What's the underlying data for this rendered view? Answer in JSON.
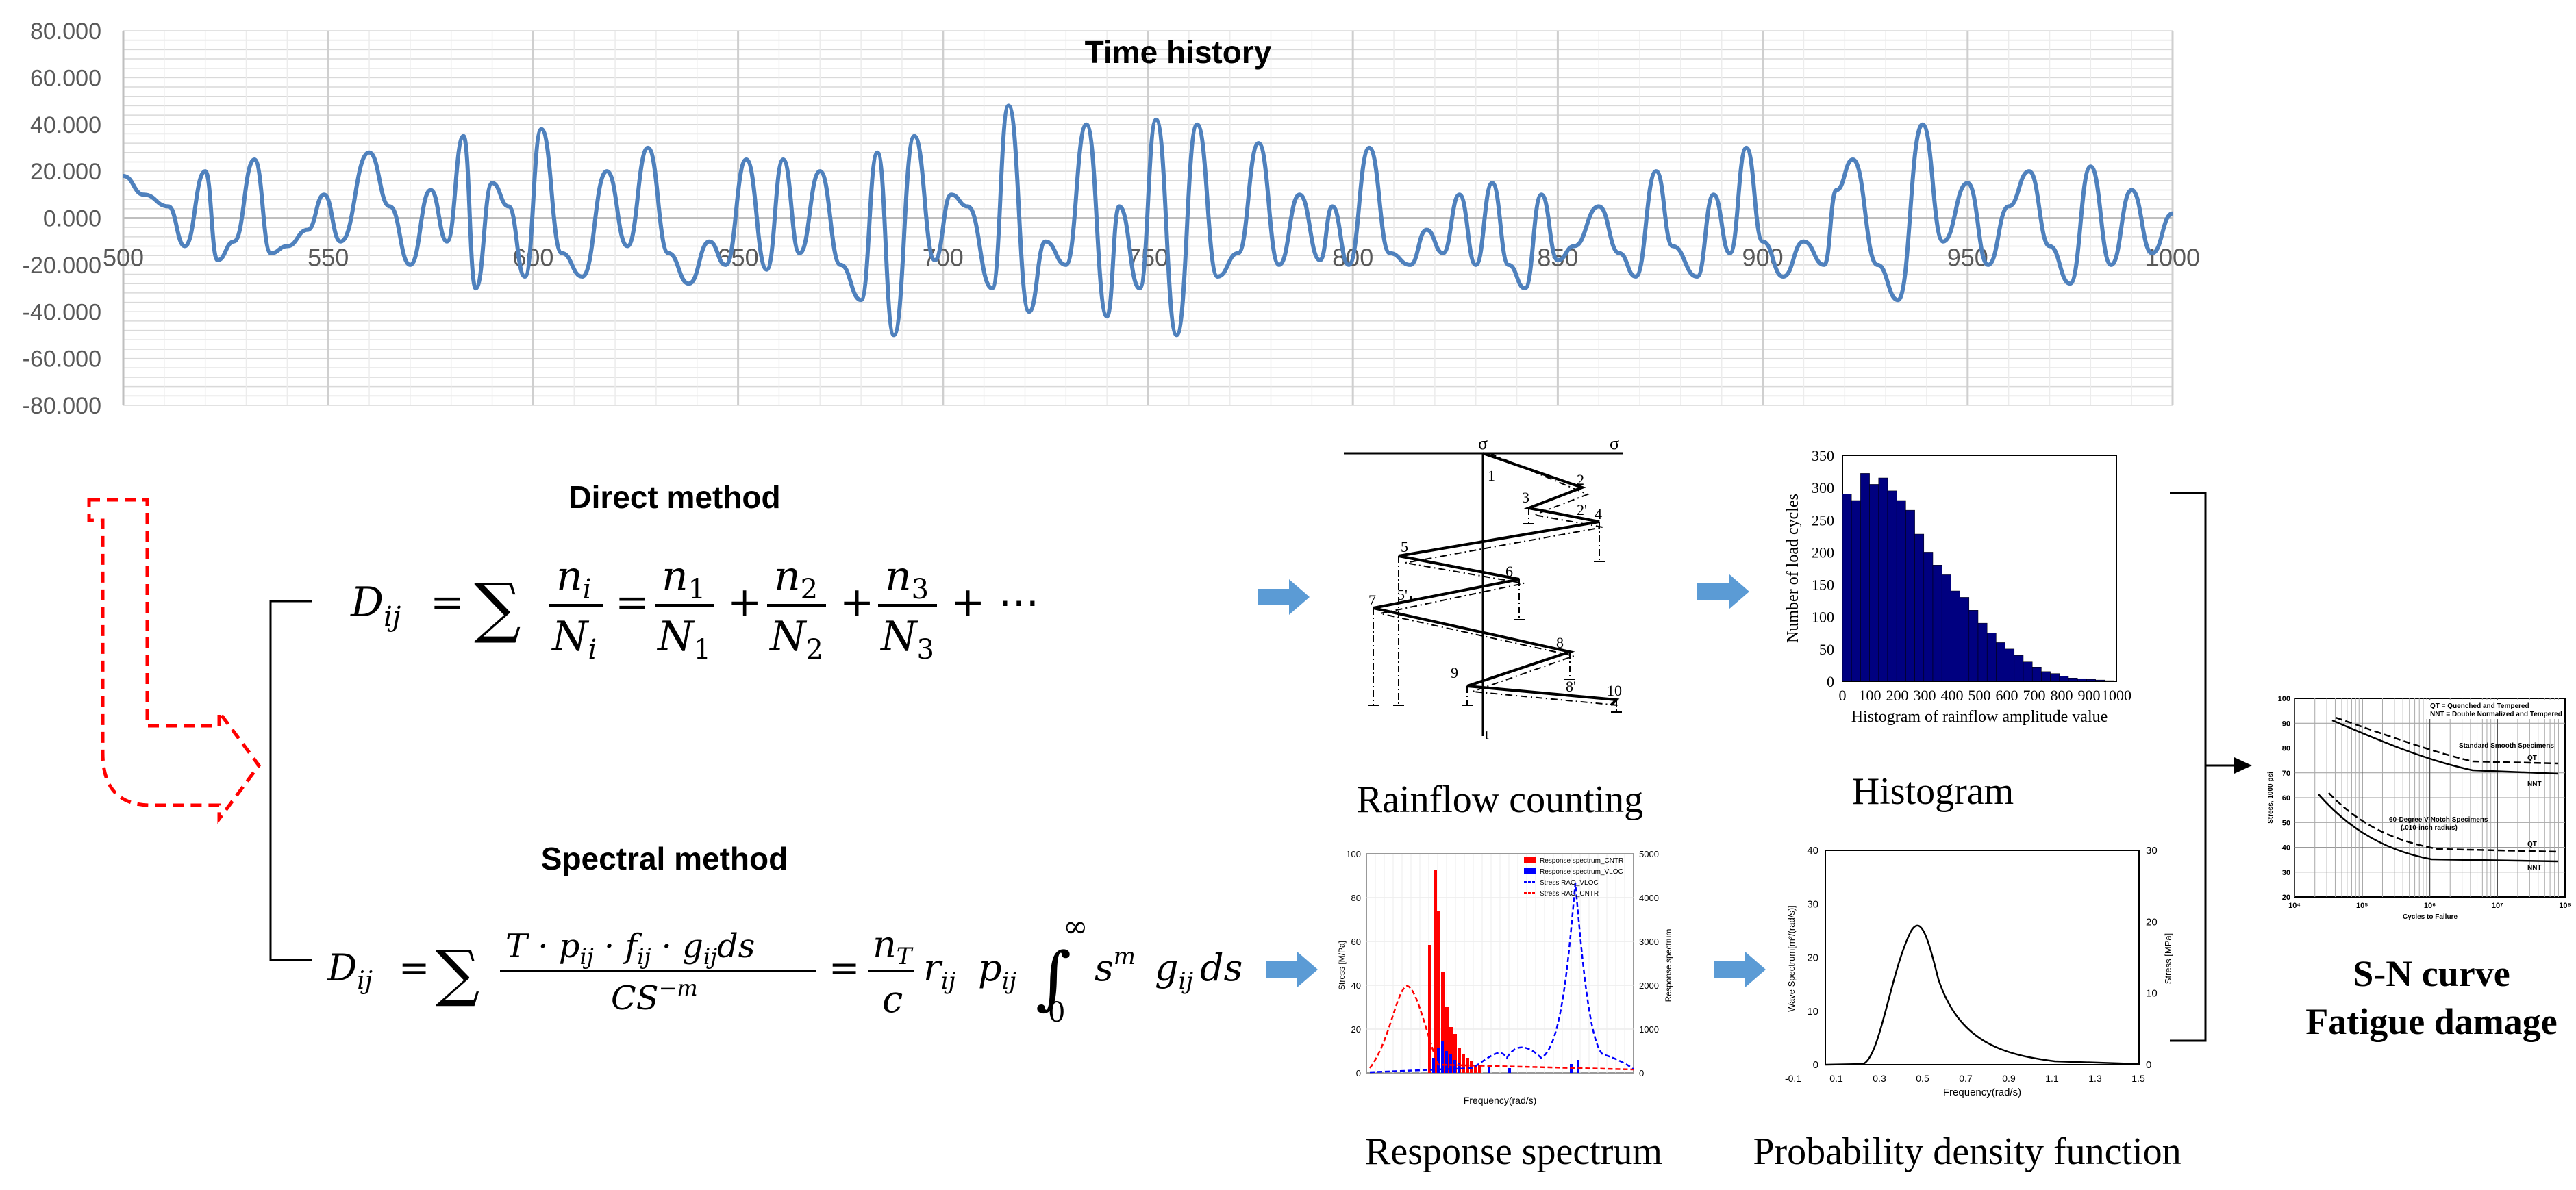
{
  "colors": {
    "series": "#4f81bd",
    "grid": "#d9d9d9",
    "axis": "#bfbfbf",
    "arrow_blue": "#5b9bd5",
    "redirect": "#ff0000",
    "histogram_bar": "#000080",
    "rs_red": "#ff0000",
    "rs_blue": "#0000ff"
  },
  "time_history": {
    "title": "Time history",
    "y_ticks": [
      "80.000",
      "60.000",
      "40.000",
      "20.000",
      "0.000",
      "-20.000",
      "-40.000",
      "-60.000",
      "-80.000"
    ],
    "x_ticks": [
      "500",
      "550",
      "600",
      "650",
      "700",
      "750",
      "800",
      "850",
      "900",
      "950",
      "1000"
    ],
    "chart_data": {
      "type": "line",
      "title": "Time history",
      "xlim": [
        500,
        1000
      ],
      "ylim": [
        -80,
        80
      ],
      "x": [
        500,
        505,
        511,
        515,
        520,
        523,
        527,
        532,
        536,
        540,
        545,
        549,
        553,
        560,
        565,
        570,
        575,
        579,
        583,
        586,
        590,
        594,
        598,
        602,
        607,
        612,
        618,
        623,
        628,
        633,
        638,
        643,
        647,
        652,
        657,
        661,
        665,
        670,
        675,
        680,
        684,
        688,
        693,
        698,
        702,
        706,
        712,
        716,
        721,
        725,
        730,
        735,
        740,
        743,
        748,
        752,
        757,
        762,
        767,
        772,
        777,
        782,
        787,
        792,
        795,
        799,
        804,
        809,
        814,
        818,
        822,
        826,
        830,
        834,
        838,
        842,
        846,
        850,
        854,
        860,
        865,
        869,
        874,
        878,
        884,
        888,
        892,
        896,
        900,
        905,
        910,
        915,
        918,
        922,
        928,
        933,
        939,
        944,
        950,
        955,
        960,
        965,
        970,
        975,
        980,
        985,
        990,
        995,
        1000
      ],
      "y": [
        18,
        10,
        5,
        -12,
        20,
        -18,
        -10,
        25,
        -15,
        -12,
        -5,
        10,
        -10,
        28,
        5,
        -20,
        12,
        -10,
        35,
        -30,
        15,
        5,
        -25,
        38,
        -15,
        -25,
        20,
        -12,
        30,
        -15,
        -28,
        -10,
        -20,
        25,
        -22,
        25,
        -15,
        20,
        -20,
        -35,
        28,
        -50,
        35,
        -18,
        10,
        5,
        -30,
        48,
        -40,
        -10,
        -20,
        40,
        -42,
        5,
        -30,
        42,
        -50,
        40,
        -25,
        -15,
        32,
        -20,
        10,
        -18,
        5,
        -20,
        30,
        -15,
        -20,
        -5,
        -15,
        10,
        -20,
        15,
        -20,
        -30,
        10,
        -18,
        -12,
        5,
        -15,
        -25,
        20,
        -12,
        -25,
        10,
        -15,
        30,
        -10,
        -25,
        -10,
        -20,
        12,
        25,
        -20,
        -35,
        40,
        -10,
        15,
        -20,
        5,
        20,
        -12,
        -28,
        22,
        -20,
        12,
        -15,
        2
      ]
    }
  },
  "direct_method": {
    "title": "Direct method",
    "formula": {
      "lhs": "D",
      "lhs_sub": "ij",
      "eq": "=",
      "sigma": "∑",
      "n_i": "n",
      "n_i_sub": "i",
      "N_i": "N",
      "N_i_sub": "i",
      "n1": "n",
      "n1_sub": "1",
      "N1": "N",
      "N1_sub": "1",
      "n2": "n",
      "n2_sub": "2",
      "N2": "N",
      "N2_sub": "2",
      "n3": "n",
      "n3_sub": "3",
      "N3": "N",
      "N3_sub": "3",
      "plus": "+",
      "ellipsis": "+ ⋯"
    }
  },
  "spectral_method": {
    "title": "Spectral method",
    "formula": {
      "lhs": "D",
      "lhs_sub": "ij",
      "numerator": "T · p",
      "numerator_sub1": "ij",
      "numerator_mid1": " · f",
      "numerator_sub2": "ij",
      "numerator_mid2": " · g",
      "numerator_sub3": "ij",
      "numerator_tail": "ds",
      "denominator": "CS",
      "denominator_sup": "−m",
      "nT": "n",
      "nT_sub": "T",
      "c": "c",
      "r": "r",
      "r_sub": "ij",
      "p": "p",
      "p_sub": "ij",
      "integral": "∫",
      "int_upper": "∞",
      "int_lower": "0",
      "s": "s",
      "s_sup": "m",
      "g": "g",
      "g_sub": "ij",
      "ds": "ds"
    }
  },
  "rainflow": {
    "caption": "Rainflow counting",
    "sigma_left": "σ",
    "sigma_right": "σ",
    "t_label": "t",
    "points": [
      "1",
      "2",
      "2'",
      "3",
      "4",
      "5",
      "5'",
      "6",
      "7",
      "8",
      "8'",
      "9",
      "10"
    ]
  },
  "histogram": {
    "caption": "Histogram",
    "ylabel": "Number of load cycles",
    "xlabel": "Histogram of rainflow amplitude value",
    "y_ticks": [
      "350",
      "300",
      "250",
      "200",
      "150",
      "100",
      "50",
      "0"
    ],
    "x_ticks": [
      "0",
      "100",
      "200",
      "300",
      "400",
      "500",
      "600",
      "700",
      "800",
      "900",
      "1000"
    ],
    "chart_data": {
      "type": "bar",
      "xlim": [
        0,
        1000
      ],
      "ylim": [
        0,
        350
      ],
      "bin_width": 33,
      "values": [
        290,
        280,
        322,
        305,
        315,
        295,
        280,
        265,
        228,
        200,
        180,
        165,
        140,
        130,
        110,
        90,
        75,
        60,
        50,
        40,
        30,
        22,
        15,
        12,
        8,
        5,
        4,
        3,
        2,
        1
      ]
    }
  },
  "response_spectrum": {
    "caption": "Response spectrum",
    "ylabel_left": "Stress [M/Pa]",
    "ylabel_right": "Response spectrum",
    "xlabel": "Frequency(rad/s)",
    "left_ticks": [
      "100",
      "80",
      "60",
      "40",
      "20",
      "0"
    ],
    "right_ticks": [
      "5000",
      "4000",
      "3000",
      "2000",
      "1000",
      "0"
    ],
    "legend": [
      "Response spectrum_CNTR",
      "Response spectrum_VLOC",
      "Stress RAO_VLOC",
      "Stress RAO_CNTR"
    ]
  },
  "pdf": {
    "caption": "Probability density function",
    "ylabel_left": "Wave Spectrum[m²/(rad/s)]",
    "ylabel_right": "Stress [MPa]",
    "xlabel": "Frequency(rad/s)",
    "left_ticks": [
      "40",
      "30",
      "20",
      "10",
      "0"
    ],
    "right_ticks": [
      "30",
      "20",
      "10",
      "0"
    ],
    "x_ticks": [
      "-0.1",
      "0.1",
      "0.3",
      "0.5",
      "0.7",
      "0.9",
      "1.1",
      "1.3",
      "1.5"
    ]
  },
  "sn_curve": {
    "caption_line1": "S-N curve",
    "caption_line2": "Fatigue damage",
    "legend_qt": "QT = Quenched and Tempered",
    "legend_nnt": "NNT = Double Normalized and Tempered",
    "label_smooth": "Standard Smooth Specimens",
    "label_notch": "60-Degree V-Notch Specimens",
    "label_notch2": "(.010-inch radius)",
    "label_qt": "QT",
    "label_nnt": "NNT",
    "ylabel": "Stress, 1000 psi",
    "xlabel": "Cycles to Failure",
    "y_ticks": [
      "100",
      "90",
      "80",
      "70",
      "60",
      "50",
      "40",
      "30",
      "20"
    ],
    "x_ticks": [
      "10⁴",
      "10⁵",
      "10⁶",
      "10⁷",
      "10⁸"
    ]
  }
}
